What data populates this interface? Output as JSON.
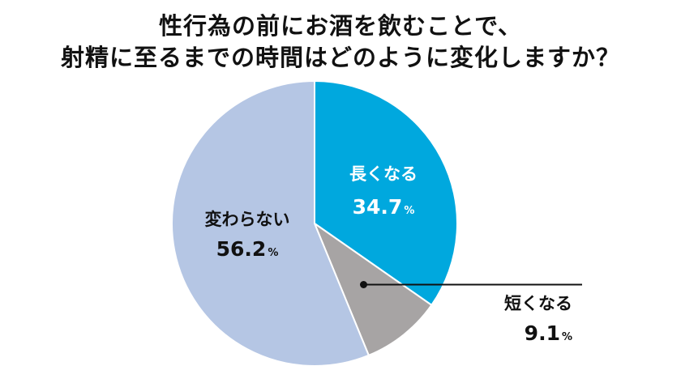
{
  "chart_data": {
    "type": "pie",
    "title_lines": [
      "性行為の前にお酒を飲むことで、",
      "射精に至るまでの時間はどのように変化しますか？"
    ],
    "unit": "%",
    "slices": [
      {
        "label": "長くなる",
        "value": 34.7,
        "display": "34.7",
        "color": "#00a8de"
      },
      {
        "label": "短くなる",
        "value": 9.1,
        "display": "9.1",
        "color": "#a7a4a4"
      },
      {
        "label": "変わらない",
        "value": 56.2,
        "display": "56.2",
        "color": "#b5c6e4"
      }
    ],
    "start_angle": "12-o'clock",
    "direction": "clockwise",
    "legend": "none"
  }
}
